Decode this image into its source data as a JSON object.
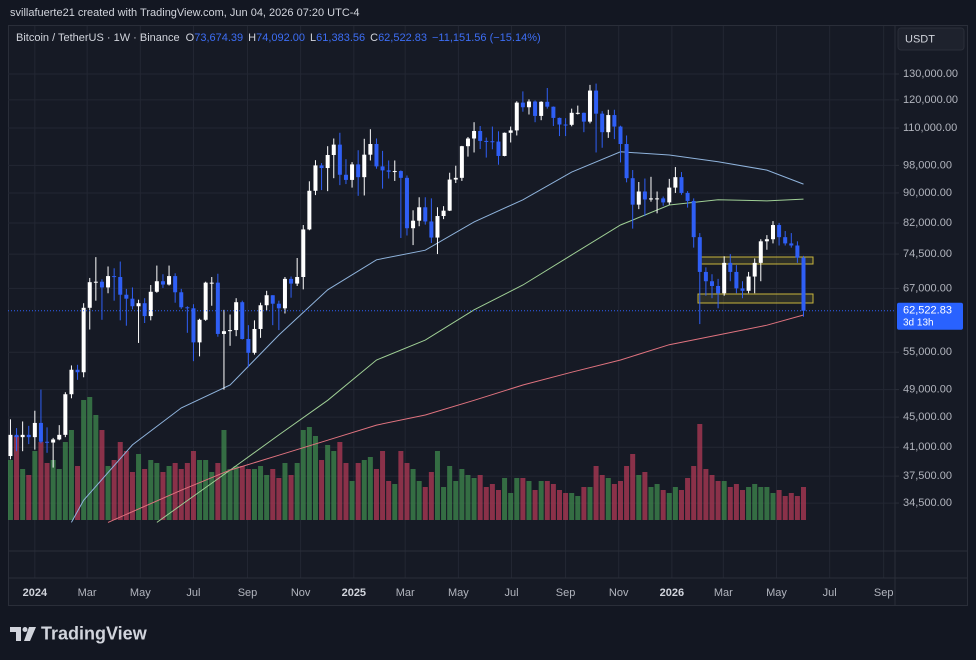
{
  "chart_data": {
    "type": "candlestick",
    "author_line": "svillafuerte21 created with TradingView.com, Jun 04, 2026 07:20 UTC-4",
    "symbol": "Bitcoin / TetherUS · 1W · Binance",
    "ohlc_legend": [
      {
        "key": "O",
        "text": "73,674.39"
      },
      {
        "key": "H",
        "text": "74,092.00"
      },
      {
        "key": "L",
        "text": "61,383.56"
      },
      {
        "key": "C",
        "text": "62,522.83"
      }
    ],
    "change": "−11,151.56 (−15.14%)",
    "currency": "USDT",
    "last_price_label": "62,522.83",
    "countdown": "3d 13h",
    "brand": "TradingView",
    "log_scale": true,
    "grid": true,
    "up_color": "#ffffff",
    "down_color": "#2f5ff5",
    "volume_up_color": "#3f8a4e",
    "volume_down_color": "#b23a55",
    "ylim": [
      29840,
      150800
    ],
    "yticks": [
      {
        "value": 130000,
        "label": "130,000.00"
      },
      {
        "value": 120000,
        "label": "120,000.00"
      },
      {
        "value": 110000,
        "label": "110,000.00"
      },
      {
        "value": 98000,
        "label": "98,000.00"
      },
      {
        "value": 90000,
        "label": "90,000.00"
      },
      {
        "value": 82000,
        "label": "82,000.00"
      },
      {
        "value": 74500,
        "label": "74,500.00"
      },
      {
        "value": 67000,
        "label": "67,000.00"
      },
      {
        "value": 55000,
        "label": "55,000.00"
      },
      {
        "value": 49000,
        "label": "49,000.00"
      },
      {
        "value": 45000,
        "label": "45,000.00"
      },
      {
        "value": 41000,
        "label": "41,000.00"
      },
      {
        "value": 37500,
        "label": "37,500.00"
      },
      {
        "value": 34500,
        "label": "34,500.00"
      }
    ],
    "xlim": [
      -4.4,
      141.0
    ],
    "xticks": [
      {
        "value": 0,
        "label": "2024"
      },
      {
        "value": 8.57,
        "label": "Mar"
      },
      {
        "value": 17.29,
        "label": "May"
      },
      {
        "value": 26,
        "label": "Jul"
      },
      {
        "value": 34.86,
        "label": "Sep"
      },
      {
        "value": 43.57,
        "label": "Nov"
      },
      {
        "value": 52.29,
        "label": "2025"
      },
      {
        "value": 60.71,
        "label": "Mar"
      },
      {
        "value": 69.43,
        "label": "May"
      },
      {
        "value": 78.14,
        "label": "Jul"
      },
      {
        "value": 87,
        "label": "Sep"
      },
      {
        "value": 95.71,
        "label": "Nov"
      },
      {
        "value": 104.43,
        "label": "2026"
      },
      {
        "value": 112.86,
        "label": "Mar"
      },
      {
        "value": 121.57,
        "label": "May"
      },
      {
        "value": 130.29,
        "label": "Jul"
      },
      {
        "value": 139.14,
        "label": "Sep"
      }
    ],
    "vlim": [
      0,
      500
    ],
    "x": [
      -4,
      -3,
      -2,
      -1,
      0,
      1,
      2,
      3,
      4,
      5,
      6,
      7,
      8,
      9,
      10,
      11,
      12,
      13,
      14,
      15,
      16,
      17,
      18,
      19,
      20,
      21,
      22,
      23,
      24,
      25,
      26,
      27,
      28,
      29,
      30,
      31,
      32,
      33,
      34,
      35,
      36,
      37,
      38,
      39,
      40,
      41,
      42,
      43,
      44,
      45,
      46,
      47,
      48,
      49,
      50,
      51,
      52,
      53,
      54,
      55,
      56,
      57,
      58,
      59,
      60,
      61,
      62,
      63,
      64,
      65,
      66,
      67,
      68,
      69,
      70,
      71,
      72,
      73,
      74,
      75,
      76,
      77,
      78,
      79,
      80,
      81,
      82,
      83,
      84,
      85,
      86,
      87,
      88,
      89,
      90,
      91,
      92,
      93,
      94,
      95,
      96,
      97,
      98,
      99,
      100,
      101,
      102,
      103,
      104,
      105,
      106,
      107,
      108,
      109,
      110,
      111,
      112,
      113,
      114,
      115,
      116,
      117,
      118,
      119,
      120,
      121,
      122,
      123,
      124,
      125,
      126
    ],
    "open": [
      39900,
      42600,
      42300,
      42600,
      42300,
      44200,
      41700,
      41600,
      42000,
      42600,
      48300,
      52100,
      51700,
      63100,
      68300,
      68400,
      67200,
      69600,
      69400,
      65700,
      64900,
      63400,
      64000,
      61500,
      66300,
      68500,
      67800,
      69600,
      66200,
      63200,
      63000,
      56700,
      60800,
      68200,
      68200,
      58200,
      58700,
      58900,
      64200,
      57300,
      54900,
      59100,
      63600,
      65600,
      63900,
      63000,
      69000,
      68000,
      69400,
      80400,
      90600,
      98000,
      97200,
      101200,
      104500,
      95200,
      93700,
      98300,
      94500,
      101300,
      104700,
      97700,
      96500,
      96100,
      96300,
      94300,
      80700,
      82600,
      86100,
      82400,
      78400,
      83800,
      85200,
      93800,
      94300,
      104000,
      106500,
      109000,
      105700,
      105600,
      105500,
      100900,
      108400,
      109200,
      119000,
      117300,
      119400,
      114200,
      119300,
      117500,
      113500,
      111200,
      111100,
      115300,
      115300,
      112200,
      123500,
      115000,
      108600,
      114500,
      110500,
      104700,
      94200,
      86800,
      90400,
      88200,
      88500,
      88500,
      87400,
      91500,
      94500,
      90000,
      87800,
      78500,
      70500,
      68500,
      67500,
      66000,
      72500,
      70500,
      67000,
      66500,
      69500,
      72500,
      77500,
      78000,
      81500,
      78500,
      77000,
      76500,
      73674.39
    ],
    "high": [
      44700,
      43500,
      44400,
      43800,
      45900,
      49000,
      43600,
      42200,
      43900,
      48600,
      52800,
      52900,
      64000,
      69200,
      73800,
      68900,
      71700,
      71300,
      72800,
      66900,
      67200,
      64700,
      65000,
      67700,
      71900,
      70000,
      71900,
      70200,
      66900,
      63400,
      63800,
      61000,
      68400,
      69400,
      70100,
      62700,
      61800,
      65000,
      64500,
      59800,
      60700,
      64100,
      66500,
      65600,
      64500,
      69400,
      69500,
      73600,
      81500,
      93300,
      99600,
      98700,
      104000,
      106500,
      108400,
      99900,
      99000,
      102700,
      106400,
      109600,
      106500,
      102500,
      99500,
      99500,
      96500,
      95000,
      85300,
      88800,
      88800,
      88500,
      86100,
      86400,
      95800,
      97900,
      104100,
      107000,
      112000,
      110700,
      106800,
      110500,
      108900,
      108500,
      110500,
      119500,
      123200,
      120200,
      119800,
      119500,
      124500,
      117600,
      113600,
      113400,
      116800,
      117900,
      115400,
      125700,
      126200,
      115900,
      116400,
      116400,
      110800,
      107500,
      96600,
      93100,
      94100,
      94600,
      90400,
      89000,
      94000,
      97500,
      96000,
      90500,
      88500,
      79500,
      71500,
      70000,
      69000,
      74000,
      74500,
      72000,
      68500,
      70500,
      73500,
      78000,
      79000,
      82500,
      82000,
      80000,
      79500,
      77500,
      74092
    ],
    "low": [
      39500,
      40500,
      40500,
      41400,
      40700,
      41500,
      40300,
      38500,
      41900,
      42300,
      47700,
      50500,
      50900,
      59000,
      64500,
      60800,
      66000,
      64500,
      60700,
      59700,
      62800,
      56600,
      60200,
      60700,
      66100,
      67100,
      67600,
      64100,
      62900,
      58400,
      53500,
      54300,
      60600,
      63500,
      57700,
      49000,
      56100,
      57800,
      57200,
      52500,
      54600,
      57500,
      62600,
      59800,
      58900,
      62000,
      65100,
      67500,
      66800,
      80200,
      89400,
      90800,
      90500,
      94200,
      92200,
      92500,
      91500,
      89200,
      89300,
      99500,
      97000,
      91200,
      94100,
      93400,
      78300,
      78900,
      76600,
      81200,
      81600,
      77100,
      74500,
      83000,
      85100,
      92800,
      93400,
      100700,
      102000,
      103100,
      100400,
      103000,
      98200,
      100800,
      105200,
      107500,
      115700,
      114700,
      112000,
      112700,
      116800,
      110700,
      107300,
      107300,
      110600,
      114700,
      108600,
      111600,
      102000,
      103500,
      106700,
      106300,
      98900,
      93000,
      80600,
      85600,
      83800,
      87600,
      84500,
      86500,
      86800,
      90000,
      89500,
      86000,
      76000,
      60000,
      65500,
      65000,
      63000,
      65500,
      68500,
      66000,
      65000,
      66000,
      66000,
      68500,
      75500,
      77000,
      76500,
      76500,
      76000,
      72500,
      61383.56
    ],
    "close": [
      42600,
      42300,
      42600,
      42300,
      44200,
      41700,
      41600,
      42000,
      42600,
      48300,
      52100,
      51700,
      63100,
      68300,
      68400,
      67200,
      69600,
      69400,
      65700,
      64900,
      63400,
      64000,
      61500,
      66300,
      68500,
      67800,
      69600,
      66200,
      63200,
      63000,
      56700,
      60800,
      68200,
      68200,
      58200,
      58700,
      58900,
      64200,
      57300,
      54900,
      59100,
      63600,
      65600,
      63900,
      63000,
      69000,
      68000,
      69400,
      80400,
      90600,
      98000,
      97200,
      101200,
      104500,
      95200,
      93700,
      98300,
      94500,
      101300,
      104700,
      97700,
      96500,
      96100,
      96300,
      94300,
      80700,
      82600,
      86100,
      82400,
      78400,
      83800,
      85200,
      93800,
      94300,
      104000,
      106500,
      109000,
      105700,
      105600,
      105500,
      100900,
      108400,
      109200,
      119000,
      117300,
      119400,
      114200,
      119300,
      117500,
      113500,
      111200,
      111100,
      115300,
      115300,
      112200,
      123500,
      115000,
      108600,
      114500,
      110500,
      104700,
      94200,
      86800,
      90400,
      88200,
      88500,
      88500,
      87400,
      91500,
      94500,
      90000,
      87800,
      78500,
      70500,
      68500,
      67500,
      66000,
      72500,
      70500,
      67000,
      66500,
      69500,
      72500,
      77500,
      78000,
      81500,
      78500,
      77000,
      76500,
      73674.39,
      62522.83
    ],
    "volume": [
      200,
      280,
      170,
      150,
      230,
      260,
      190,
      200,
      170,
      260,
      300,
      180,
      400,
      410,
      350,
      300,
      180,
      200,
      260,
      230,
      160,
      220,
      170,
      200,
      190,
      160,
      180,
      190,
      170,
      190,
      230,
      200,
      200,
      160,
      190,
      300,
      170,
      180,
      180,
      170,
      170,
      180,
      150,
      170,
      140,
      190,
      150,
      190,
      300,
      310,
      280,
      200,
      250,
      230,
      260,
      190,
      130,
      190,
      200,
      210,
      170,
      230,
      130,
      120,
      230,
      190,
      170,
      130,
      110,
      160,
      230,
      110,
      180,
      130,
      170,
      150,
      140,
      150,
      110,
      120,
      100,
      140,
      90,
      140,
      140,
      130,
      100,
      130,
      130,
      120,
      100,
      90,
      90,
      80,
      110,
      110,
      180,
      150,
      140,
      120,
      130,
      180,
      220,
      150,
      160,
      110,
      120,
      100,
      90,
      110,
      100,
      140,
      180,
      320,
      170,
      150,
      130,
      130,
      110,
      120,
      100,
      110,
      120,
      110,
      110,
      90,
      100,
      80,
      90,
      80,
      110
    ],
    "lines": [
      {
        "color": "#8fb3dc",
        "x": [
          6,
          8,
          16,
          24,
          32,
          40,
          48,
          56,
          64,
          72,
          80,
          88,
          96,
          104,
          112,
          120,
          126
        ],
        "values": [
          32500,
          34800,
          41300,
          46300,
          49700,
          58000,
          66700,
          73200,
          75400,
          82300,
          88100,
          96000,
          102200,
          101200,
          99100,
          96600,
          92500
        ]
      },
      {
        "color": "#9fcf95",
        "x": [
          20,
          24,
          32,
          40,
          48,
          56,
          64,
          72,
          80,
          88,
          96,
          104,
          112,
          120,
          126
        ],
        "values": [
          32500,
          34300,
          38200,
          42600,
          47400,
          53700,
          57100,
          62700,
          67700,
          74300,
          81500,
          86700,
          88100,
          87800,
          88300
        ]
      },
      {
        "color": "#e0737f",
        "x": [
          12,
          24,
          32,
          40,
          48,
          56,
          64,
          72,
          80,
          88,
          96,
          104,
          112,
          120,
          126
        ],
        "values": [
          32500,
          35900,
          38200,
          40000,
          41900,
          43900,
          45300,
          47400,
          49700,
          51700,
          53700,
          56300,
          58000,
          59800,
          61700
        ]
      }
    ]
  }
}
